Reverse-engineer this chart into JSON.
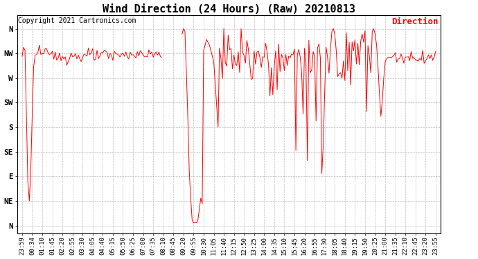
{
  "title": "Wind Direction (24 Hours) (Raw) 20210813",
  "copyright": "Copyright 2021 Cartronics.com",
  "legend_label": "Direction",
  "legend_color": "#ff0000",
  "line_color": "#ff0000",
  "background_color": "#ffffff",
  "grid_color": "#b0b0b0",
  "ytick_labels": [
    "N",
    "NW",
    "W",
    "SW",
    "S",
    "SE",
    "E",
    "NE",
    "N"
  ],
  "ytick_values": [
    360,
    315,
    270,
    225,
    180,
    135,
    90,
    45,
    0
  ],
  "ylim": [
    -15,
    385
  ],
  "xtick_labels": [
    "23:59",
    "00:34",
    "01:10",
    "01:45",
    "02:20",
    "02:55",
    "03:30",
    "04:05",
    "04:40",
    "05:15",
    "05:50",
    "06:25",
    "07:00",
    "07:35",
    "08:10",
    "08:45",
    "09:20",
    "09:55",
    "10:30",
    "11:05",
    "11:40",
    "12:15",
    "12:50",
    "13:25",
    "14:00",
    "14:35",
    "15:10",
    "15:45",
    "16:20",
    "16:55",
    "17:30",
    "18:05",
    "18:40",
    "19:15",
    "19:50",
    "20:25",
    "21:00",
    "21:35",
    "22:10",
    "22:45",
    "23:20",
    "23:55"
  ],
  "title_fontsize": 11,
  "copyright_fontsize": 7,
  "tick_fontsize": 6.5,
  "ytick_fontsize": 8,
  "figwidth": 6.9,
  "figheight": 3.75,
  "dpi": 100
}
